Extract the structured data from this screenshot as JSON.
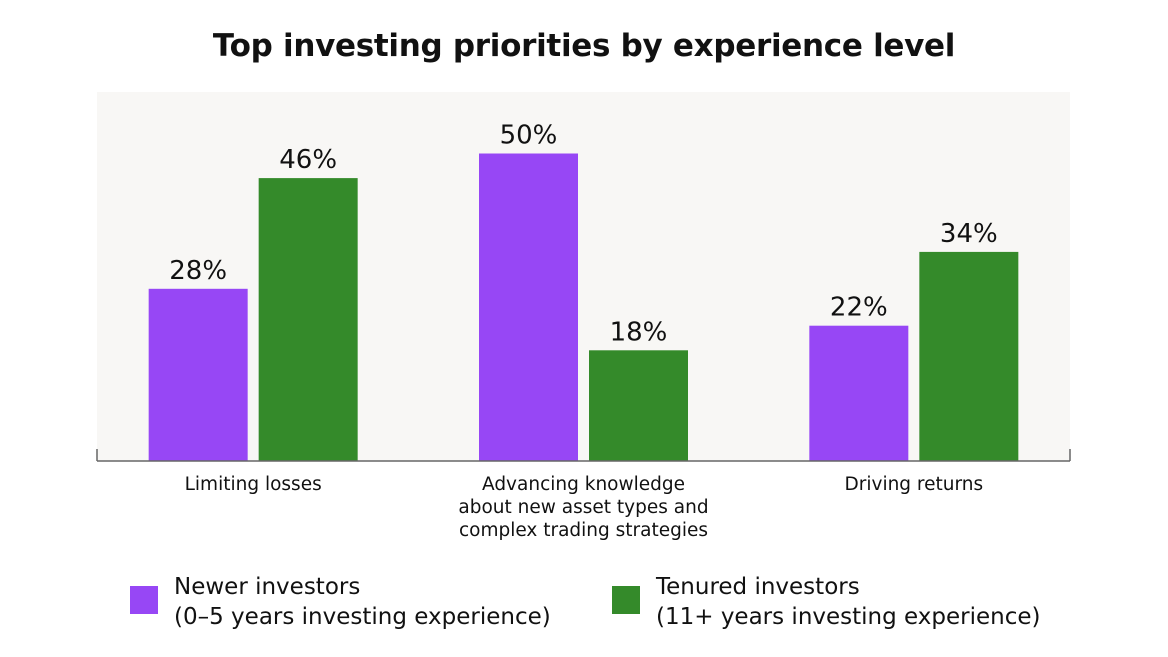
{
  "chart_data": {
    "type": "bar",
    "title": "Top investing priorities by experience level",
    "categories": [
      [
        "Limiting losses"
      ],
      [
        "Advancing knowledge",
        "about new asset types and",
        "complex trading strategies"
      ],
      [
        "Driving returns"
      ]
    ],
    "series": [
      {
        "name": "Newer investors",
        "name_detail": "(0–5 years investing experience)",
        "values": [
          28,
          50,
          22
        ],
        "labels": [
          "28%",
          "50%",
          "22%"
        ],
        "color": "#9747f5"
      },
      {
        "name": "Tenured investors",
        "name_detail": "(11+ years investing experience)",
        "values": [
          46,
          18,
          34
        ],
        "labels": [
          "46%",
          "18%",
          "34%"
        ],
        "color": "#348a2a"
      }
    ],
    "ylim": [
      0,
      60
    ],
    "grid": false,
    "legend": "bottom",
    "plot_background": "#f8f7f5"
  }
}
